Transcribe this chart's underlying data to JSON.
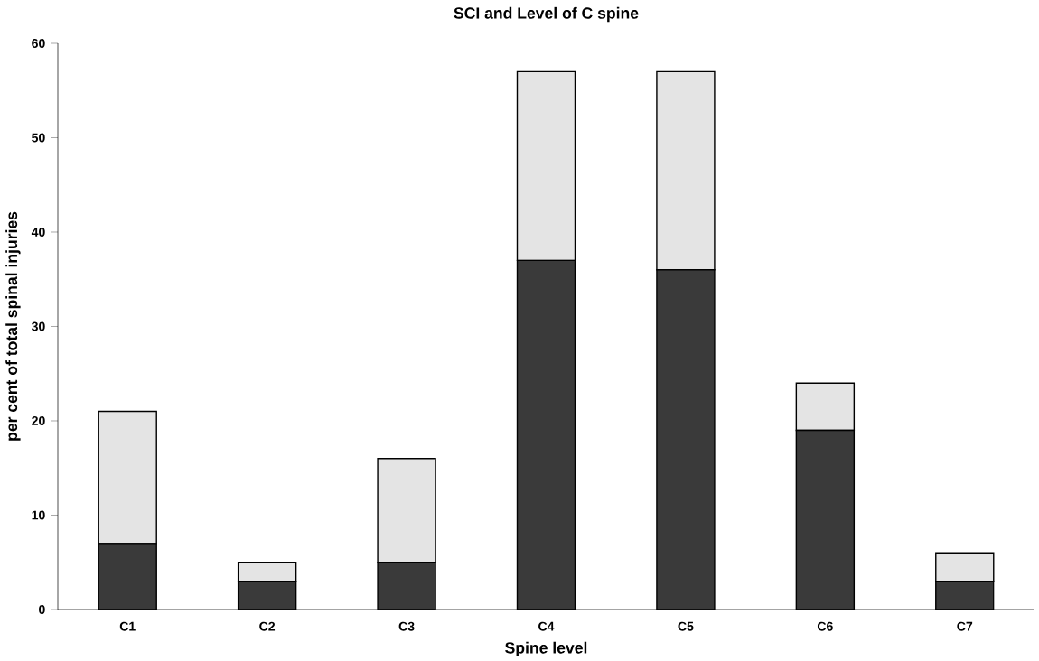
{
  "chart_data": {
    "type": "bar",
    "title": "SCI and Level of C spine",
    "xlabel": "Spine level",
    "ylabel": "per cent of total spinal injuries",
    "categories": [
      "C1",
      "C2",
      "C3",
      "C4",
      "C5",
      "C6",
      "C7"
    ],
    "stacked": true,
    "series": [
      {
        "color": "#3a3a3a",
        "values": [
          7,
          3,
          5,
          37,
          36,
          19,
          3
        ]
      },
      {
        "color": "#e4e4e4",
        "values": [
          14,
          2,
          11,
          20,
          21,
          5,
          3
        ]
      }
    ],
    "ylim": [
      0,
      60
    ],
    "yticks": [
      0,
      10,
      20,
      30,
      40,
      50,
      60
    ]
  }
}
